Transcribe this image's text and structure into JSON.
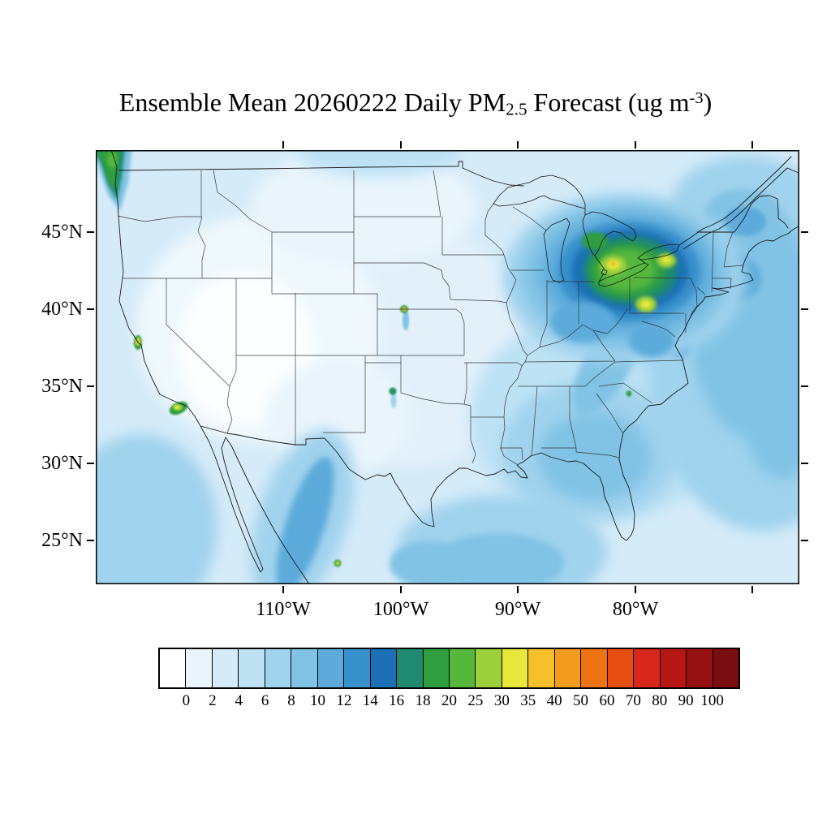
{
  "title": {
    "prefix": "Ensemble Mean 20260222 Daily PM",
    "subscript": "2.5",
    "middle": " Forecast (ug m",
    "superscript": "-3",
    "suffix": ")"
  },
  "axes": {
    "lat_labels": [
      "45°N",
      "40°N",
      "35°N",
      "30°N",
      "25°N"
    ],
    "lon_labels": [
      "110°W",
      "100°W",
      "90°W",
      "80°W"
    ]
  },
  "colorbar": {
    "tick_labels": [
      "0",
      "2",
      "4",
      "6",
      "8",
      "10",
      "12",
      "14",
      "16",
      "18",
      "20",
      "25",
      "30",
      "35",
      "40",
      "50",
      "60",
      "70",
      "80",
      "90",
      "100"
    ],
    "colors": [
      "#ffffff",
      "#e9f4fb",
      "#d5ebf8",
      "#bde2f4",
      "#a0d3ed",
      "#81c3e4",
      "#5cabda",
      "#3991cb",
      "#1d6fb6",
      "#1f8a70",
      "#2f9e3f",
      "#55b83c",
      "#9ccf3a",
      "#e8e83a",
      "#f5c02b",
      "#f39c1d",
      "#ee7313",
      "#e84e10",
      "#d7261b",
      "#b61714",
      "#961112",
      "#7a0d10"
    ]
  },
  "chart_data": {
    "type": "heatmap",
    "subtype": "filled-contour-map",
    "title": "Ensemble Mean 20260222 Daily PM2.5 Forecast (ug m-3)",
    "variable": "PM2.5 daily mean",
    "date": "20260222",
    "units": "ug m-3",
    "x_ticks": [
      "110°W",
      "100°W",
      "90°W",
      "80°W"
    ],
    "y_ticks": [
      "45°N",
      "40°N",
      "35°N",
      "30°N",
      "25°N"
    ],
    "map_extent": {
      "lon_west": -126,
      "lon_east": -66,
      "lat_south": 22,
      "lat_north": 50
    },
    "levels": [
      0,
      2,
      4,
      6,
      8,
      10,
      12,
      14,
      16,
      18,
      20,
      25,
      30,
      35,
      40,
      50,
      60,
      70,
      80,
      90,
      100
    ],
    "legend_position": "bottom",
    "grid": false,
    "regions": [
      {
        "name": "Great Lakes / Northeast (MI-OH-PA-NY-southern Ontario)",
        "approx_value_range": [
          16,
          40
        ],
        "note": "broad green maximum with yellow cores of ~30-40"
      },
      {
        "name": "New England and Atlantic offshore waters",
        "approx_value_range": [
          8,
          16
        ]
      },
      {
        "name": "Southeast US (TN valley, GA, Carolinas)",
        "approx_value_range": [
          6,
          10
        ]
      },
      {
        "name": "Gulf of Mexico coastal waters",
        "approx_value_range": [
          6,
          10
        ]
      },
      {
        "name": "Mississippi valley / central plains",
        "approx_value_range": [
          2,
          6
        ]
      },
      {
        "name": "Interior west (Great Basin, Rockies)",
        "approx_value_range": [
          0,
          2
        ]
      },
      {
        "name": "San Francisco Bay Area hotspot",
        "approx_value_range": [
          20,
          40
        ]
      },
      {
        "name": "Los Angeles basin hotspot",
        "approx_value_range": [
          16,
          30
        ]
      },
      {
        "name": "Nebraska point hotspot near 100W 40N",
        "approx_value_range": [
          20,
          40
        ]
      },
      {
        "name": "Oklahoma/Texas panhandle small hotspot",
        "approx_value_range": [
          14,
          20
        ]
      },
      {
        "name": "Pacific Northwest coastal strip",
        "approx_value_range": [
          14,
          20
        ]
      },
      {
        "name": "Sierra Madre (Mexico) terrain band",
        "approx_value_range": [
          6,
          10
        ]
      },
      {
        "name": "Small hotspot on Mexico Gulf coast",
        "approx_value_range": [
          18,
          30
        ]
      },
      {
        "name": "Small hotspot in central North Carolina",
        "approx_value_range": [
          16,
          20
        ]
      }
    ]
  }
}
